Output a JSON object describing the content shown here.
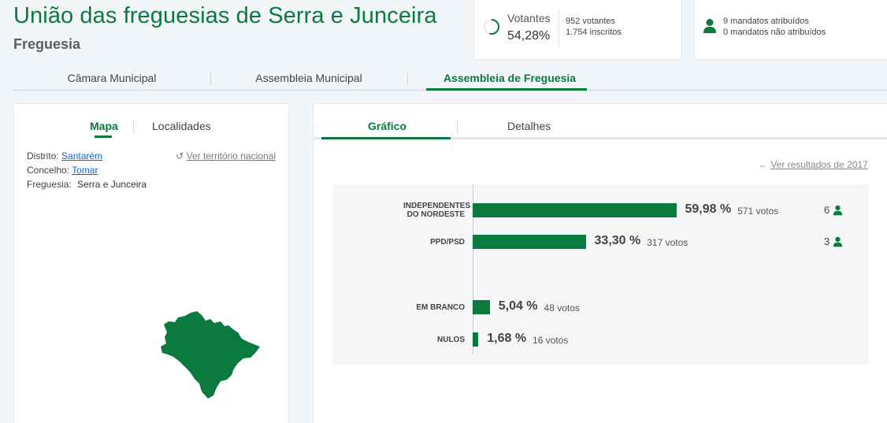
{
  "header": {
    "title": "União das freguesias de Serra e Junceira",
    "subtitle": "Freguesia"
  },
  "votantes": {
    "label": "Votantes",
    "percent": "54,28%",
    "percent_value": 54.28,
    "voters": "952 votantes",
    "registered": "1.754 inscritos"
  },
  "mandatos": {
    "icon": "person-icon",
    "assigned": "9 mandatos atribuídos",
    "unassigned": "0 mandatos não atribuídos"
  },
  "top_tabs": [
    {
      "label": "Câmara Municipal",
      "active": false
    },
    {
      "label": "Assembleia Municipal",
      "active": false
    },
    {
      "label": "Assembleia de Freguesia",
      "active": true
    }
  ],
  "left_panel": {
    "tabs": [
      {
        "label": "Mapa",
        "active": true
      },
      {
        "label": "Localidades",
        "active": false
      }
    ],
    "distrito_label": "Distrito:",
    "distrito_value": "Santarém",
    "concelho_label": "Concelho:",
    "concelho_value": "Tomar",
    "freguesia_label": "Freguesia:",
    "freguesia_value": "Serra e Junceira",
    "ver_territorio": "Ver território nacional"
  },
  "right_panel": {
    "tabs": [
      {
        "label": "Gráfico",
        "active": true
      },
      {
        "label": "Detalhes",
        "active": false
      }
    ],
    "ver_resultados": "Ver resultados de 2017"
  },
  "colors": {
    "brand_green": "#0a7a3e",
    "link_blue": "#1a62c6"
  },
  "chart_data": {
    "type": "bar",
    "orientation": "horizontal",
    "categories": [
      "INDEPENDENTES DO NORDESTE",
      "PPD/PSD",
      "EM BRANCO",
      "NULOS"
    ],
    "values": [
      59.98,
      33.3,
      5.04,
      1.68
    ],
    "percent_labels": [
      "59,98 %",
      "33,30 %",
      "5,04 %",
      "1,68 %"
    ],
    "vote_labels": [
      "571 votos",
      "317 votos",
      "48 votos",
      "16 votos"
    ],
    "votes": [
      571,
      317,
      48,
      16
    ],
    "seats": [
      "6",
      "3",
      "",
      ""
    ],
    "xlim": [
      0,
      100
    ]
  }
}
